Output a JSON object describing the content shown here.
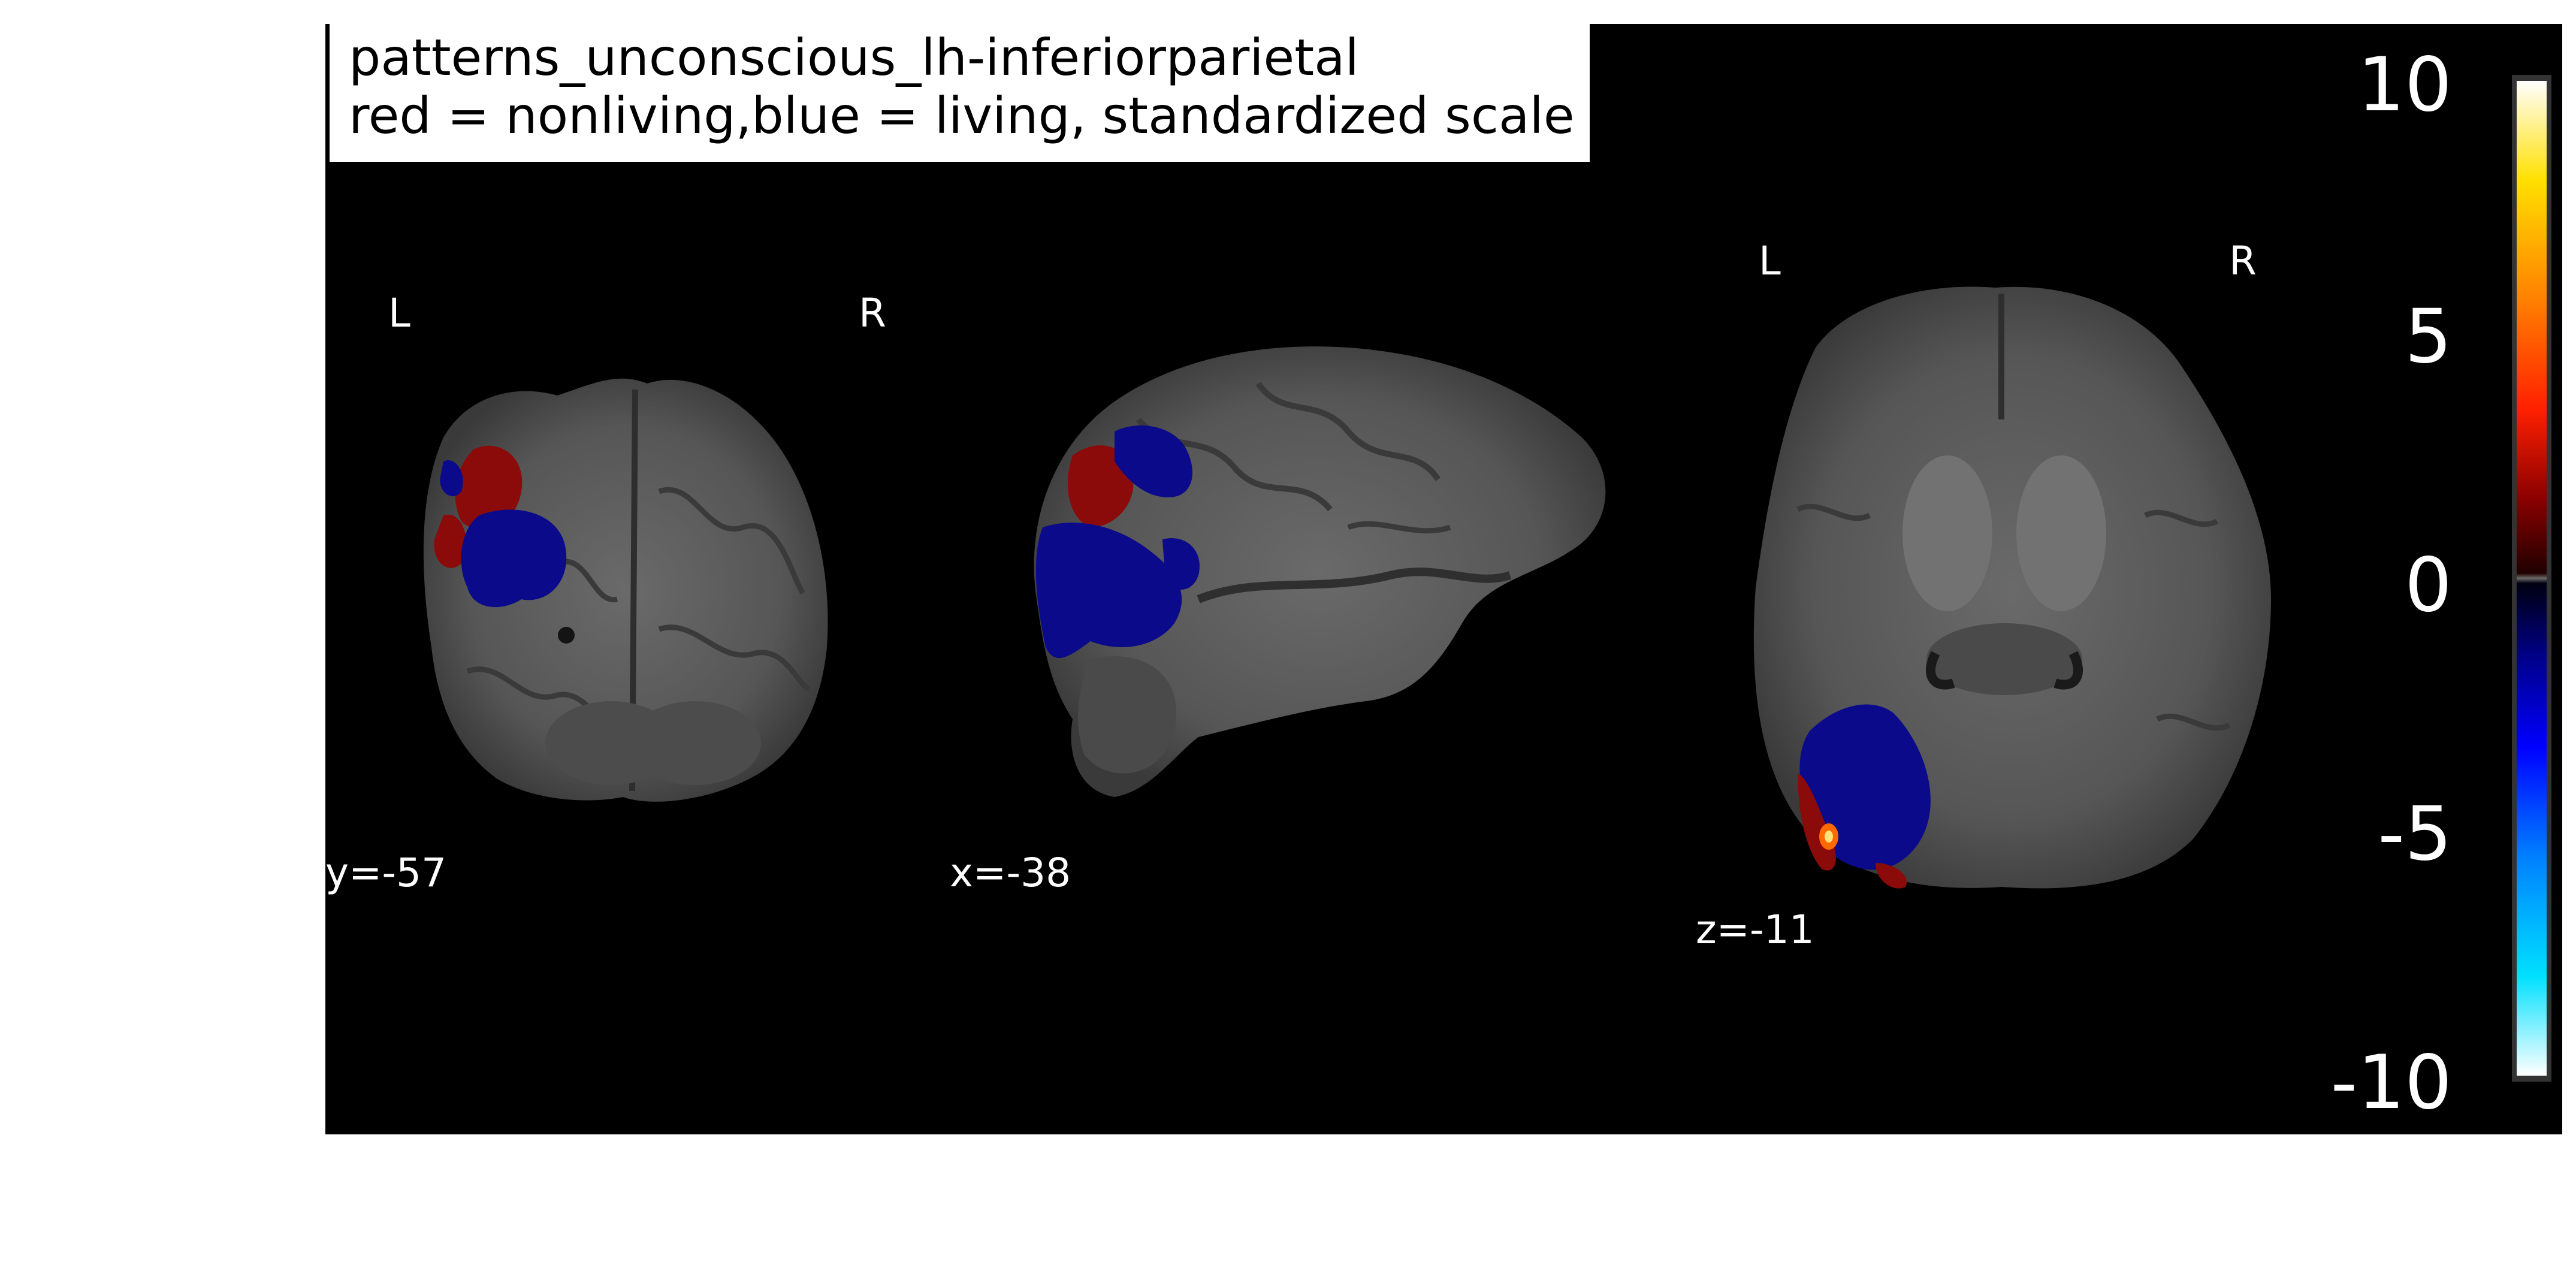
{
  "title": {
    "line1": "patterns_unconscious_lh-inferiorparietal",
    "line2": "red = nonliving,blue = living, standardized scale"
  },
  "views": [
    {
      "name": "coronal",
      "coord_label": "y=-57",
      "left_label": "L",
      "right_label": "R"
    },
    {
      "name": "sagittal",
      "coord_label": "x=-38"
    },
    {
      "name": "axial",
      "coord_label": "z=-11",
      "left_label": "L",
      "right_label": "R"
    }
  ],
  "colorbar": {
    "ticks": [
      "10",
      "5",
      "0",
      "-5",
      "-10"
    ],
    "range": [
      -10,
      10
    ],
    "colors": {
      "positive": [
        "#2a0000",
        "#8b0000",
        "#ff2000",
        "#ff8000",
        "#ffe000",
        "#ffffff"
      ],
      "negative": [
        "#000010",
        "#00008b",
        "#0000ff",
        "#0080ff",
        "#00e0ff",
        "#ffffff"
      ]
    }
  }
}
